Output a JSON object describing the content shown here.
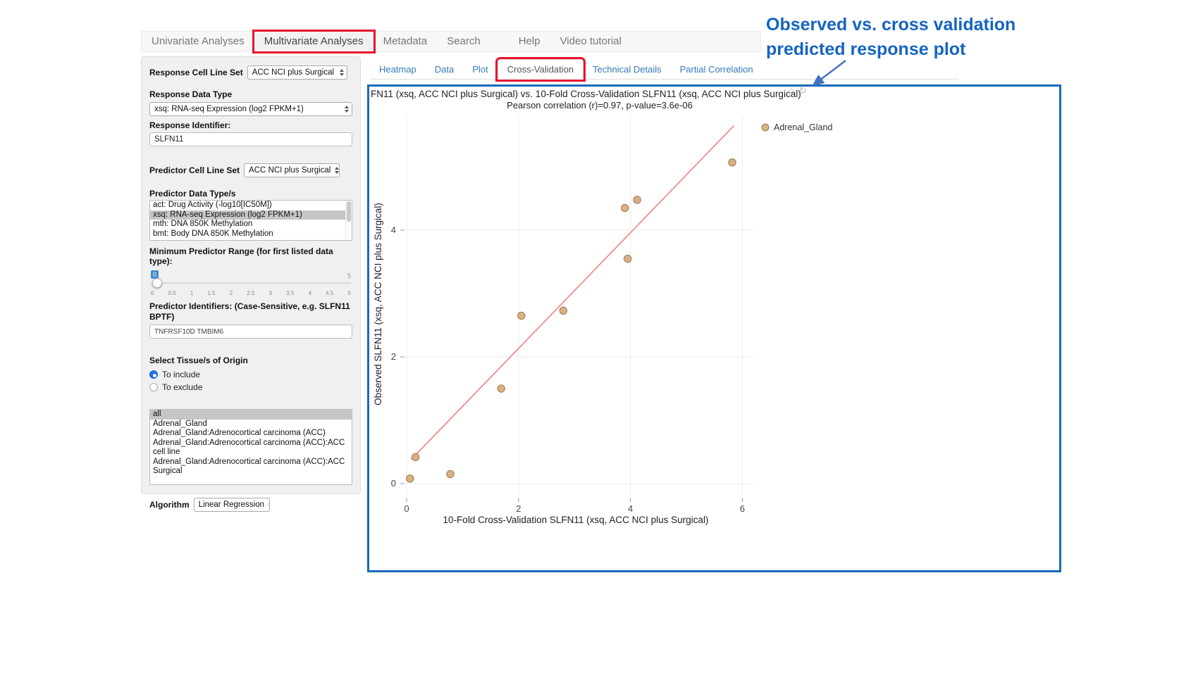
{
  "colors": {
    "annotation_red": "#e8112d",
    "panel_border_blue": "#1a6ab8",
    "link_blue": "#337ab7"
  },
  "nav": {
    "items": [
      {
        "label": "Univariate Analyses",
        "active": false,
        "gap_before": false
      },
      {
        "label": "Multivariate Analyses",
        "active": true,
        "highlighted": true,
        "gap_before": false
      },
      {
        "label": "Metadata",
        "active": false,
        "gap_before": false
      },
      {
        "label": "Search",
        "active": false,
        "gap_before": false
      },
      {
        "label": "Help",
        "active": false,
        "gap_before": true
      },
      {
        "label": "Video tutorial",
        "active": false,
        "gap_before": false
      }
    ]
  },
  "sidebar": {
    "response_cell_line_set": {
      "label": "Response Cell Line Set",
      "value": "ACC NCI plus Surgical"
    },
    "response_data_type": {
      "label": "Response Data Type",
      "value": "xsq: RNA-seq Expression (log2 FPKM+1)"
    },
    "response_identifier": {
      "label": "Response Identifier:",
      "value": "SLFN11"
    },
    "predictor_cell_line_set": {
      "label": "Predictor Cell Line Set",
      "value": "ACC NCI plus Surgical"
    },
    "predictor_data_types": {
      "label": "Predictor Data Type/s",
      "options": [
        {
          "label": "act: Drug Activity (-log10[IC50M])",
          "selected": false
        },
        {
          "label": "xsq: RNA-seq Expression (log2 FPKM+1)",
          "selected": true
        },
        {
          "label": "mth: DNA 850K Methylation",
          "selected": false
        },
        {
          "label": "bmt: Body DNA 850K Methylation",
          "selected": false
        }
      ]
    },
    "min_predictor_range": {
      "label": "Minimum Predictor Range (for first listed data type):",
      "value": "0",
      "max_label": "5",
      "ticks": [
        "0",
        "0.5",
        "1",
        "1.5",
        "2",
        "2.5",
        "3",
        "3.5",
        "4",
        "4.5",
        "5"
      ]
    },
    "predictor_identifiers": {
      "label": "Predictor Identifiers: (Case-Sensitive, e.g. SLFN11 BPTF)",
      "value": "TNFRSF10D TMBIM6"
    },
    "tissue": {
      "label": "Select Tissue/s of Origin",
      "radios": [
        {
          "label": "To include",
          "checked": true
        },
        {
          "label": "To exclude",
          "checked": false
        }
      ],
      "options": [
        {
          "label": "all",
          "selected": true
        },
        {
          "label": "Adrenal_Gland",
          "selected": false
        },
        {
          "label": "Adrenal_Gland:Adrenocortical carcinoma (ACC)",
          "selected": false
        },
        {
          "label": "Adrenal_Gland:Adrenocortical carcinoma (ACC):ACC cell line",
          "selected": false
        },
        {
          "label": "Adrenal_Gland:Adrenocortical carcinoma (ACC):ACC Surgical",
          "selected": false
        }
      ]
    },
    "algorithm": {
      "label": "Algorithm",
      "value": "Linear Regression"
    }
  },
  "tabs": [
    {
      "label": "Heatmap",
      "active": false
    },
    {
      "label": "Data",
      "active": false
    },
    {
      "label": "Plot",
      "active": false
    },
    {
      "label": "Cross-Validation",
      "active": true,
      "highlighted": true
    },
    {
      "label": "Technical Details",
      "active": false
    },
    {
      "label": "Partial Correlation",
      "active": false
    }
  ],
  "annotation": {
    "line1": "Observed vs. cross validation",
    "line2": "predicted response plot",
    "color": "#1565c0",
    "arrow_color": "#4472c4"
  },
  "modebar_icons": [
    "home-icon",
    "reset-icon"
  ],
  "chart_data": {
    "type": "scatter",
    "title": "FN11 (xsq, ACC NCI plus Surgical) vs. 10-Fold Cross-Validation SLFN11 (xsq, ACC NCI plus Surgical)",
    "subtitle": "Pearson correlation (r)=0.97, p-value=3.6e-06",
    "xlabel": "10-Fold Cross-Validation SLFN11 (xsq, ACC NCI plus Surgical)",
    "ylabel": "Observed SLFN11 (xsq, ACC NCI plus Surgical)",
    "xlim": [
      -0.15,
      6.2
    ],
    "ylim": [
      -0.2,
      5.9
    ],
    "xticks": [
      0,
      2,
      4,
      6
    ],
    "yticks": [
      0,
      2,
      4
    ],
    "grid": true,
    "legend": [
      {
        "label": "Adrenal_Gland",
        "color": "#d9b084"
      }
    ],
    "legend_position": "top-right",
    "point_style": {
      "fill": "#d9b084",
      "stroke": "#9a7a50"
    },
    "points": [
      {
        "x": 0.06,
        "y": 0.08
      },
      {
        "x": 0.16,
        "y": 0.42
      },
      {
        "x": 0.78,
        "y": 0.15
      },
      {
        "x": 1.69,
        "y": 1.5
      },
      {
        "x": 2.05,
        "y": 2.65
      },
      {
        "x": 2.8,
        "y": 2.73
      },
      {
        "x": 3.95,
        "y": 3.55
      },
      {
        "x": 3.9,
        "y": 4.35
      },
      {
        "x": 4.12,
        "y": 4.48
      },
      {
        "x": 5.82,
        "y": 5.07
      }
    ],
    "regression_line": {
      "x1": 0.08,
      "y1": 0.38,
      "x2": 5.85,
      "y2": 5.65,
      "color": "#f08080"
    },
    "pearson_r": 0.97,
    "p_value": "3.6e-06"
  }
}
